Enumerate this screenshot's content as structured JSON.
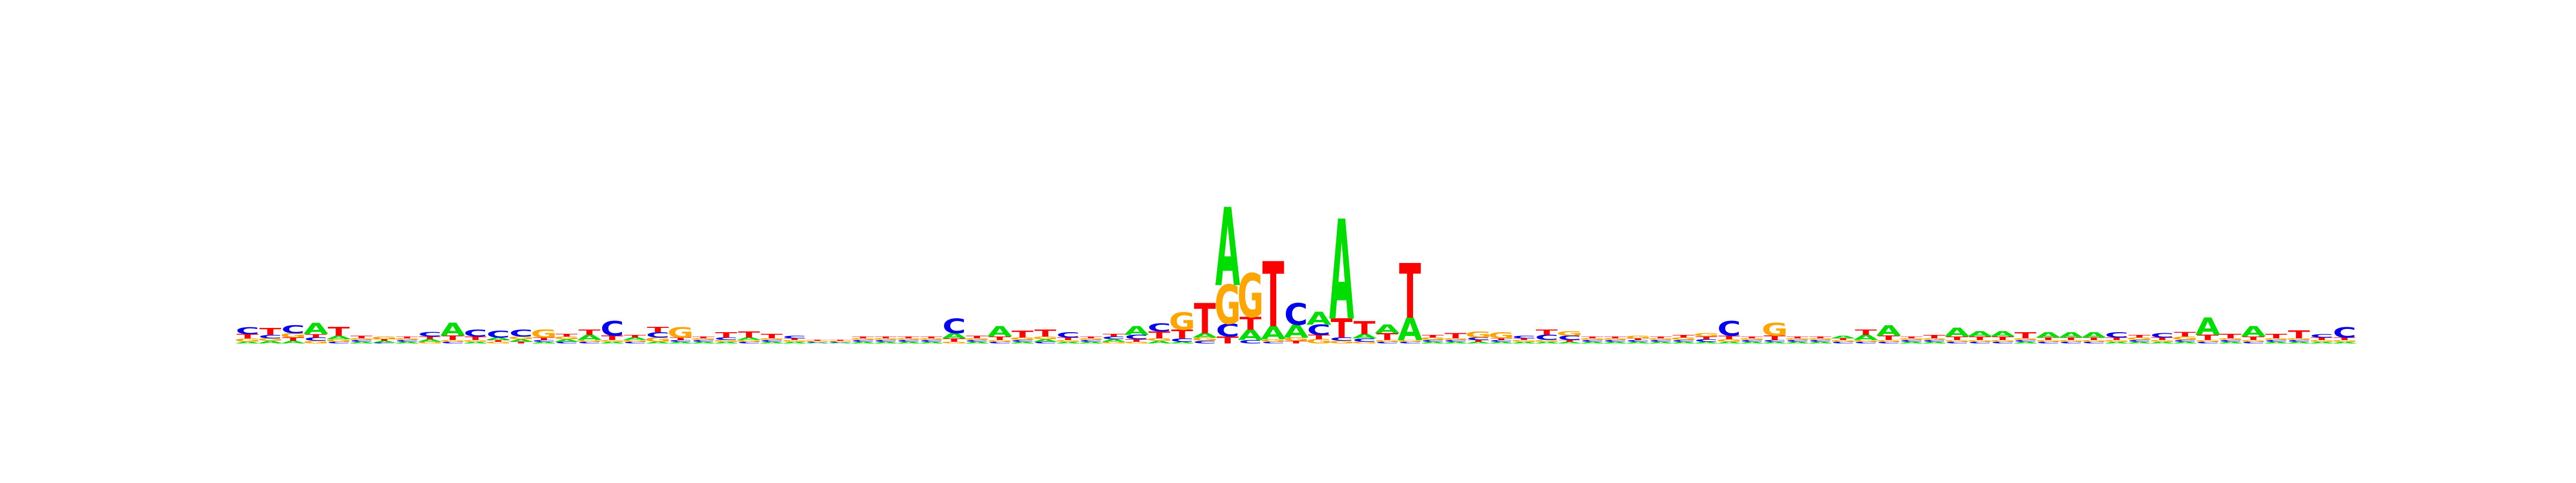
{
  "chart_data": {
    "type": "sequence-logo",
    "title": "",
    "xlabel": "",
    "ylabel": "",
    "ylim": [
      0,
      2
    ],
    "grid": false,
    "legend": "none",
    "alphabet": [
      "A",
      "C",
      "G",
      "T"
    ],
    "colors": {
      "A": "#00dd00",
      "C": "#0000ee",
      "G": "#ffa500",
      "T": "#ff0000"
    },
    "positions": [
      {
        "A": 0.02,
        "C": 0.08,
        "G": 0.04,
        "T": 0.05
      },
      {
        "A": 0.03,
        "C": 0.04,
        "G": 0.03,
        "T": 0.08
      },
      {
        "A": 0.03,
        "C": 0.09,
        "G": 0.05,
        "T": 0.04
      },
      {
        "A": 0.13,
        "C": 0.04,
        "G": 0.03,
        "T": 0.04
      },
      {
        "A": 0.04,
        "C": 0.02,
        "G": 0.03,
        "T": 0.1
      },
      {
        "A": 0.02,
        "C": 0.02,
        "G": 0.02,
        "T": 0.03
      },
      {
        "A": 0.02,
        "C": 0.01,
        "G": 0.03,
        "T": 0.02
      },
      {
        "A": 0.02,
        "C": 0.02,
        "G": 0.02,
        "T": 0.02
      },
      {
        "A": 0.03,
        "C": 0.05,
        "G": 0.02,
        "T": 0.03
      },
      {
        "A": 0.15,
        "C": 0.02,
        "G": 0.02,
        "T": 0.05
      },
      {
        "A": 0.02,
        "C": 0.08,
        "G": 0.02,
        "T": 0.04
      },
      {
        "A": 0.03,
        "C": 0.08,
        "G": 0.02,
        "T": 0.02
      },
      {
        "A": 0.03,
        "C": 0.08,
        "G": 0.03,
        "T": 0.02
      },
      {
        "A": 0.02,
        "C": 0.02,
        "G": 0.09,
        "T": 0.03
      },
      {
        "A": 0.03,
        "C": 0.02,
        "G": 0.03,
        "T": 0.03
      },
      {
        "A": 0.06,
        "C": 0.02,
        "G": 0.02,
        "T": 0.06
      },
      {
        "A": 0.02,
        "C": 0.17,
        "G": 0.02,
        "T": 0.05
      },
      {
        "A": 0.03,
        "C": 0.02,
        "G": 0.02,
        "T": 0.03
      },
      {
        "A": 0.02,
        "C": 0.06,
        "G": 0.05,
        "T": 0.06
      },
      {
        "A": 0.02,
        "C": 0.02,
        "G": 0.12,
        "T": 0.03
      },
      {
        "A": 0.02,
        "C": 0.02,
        "G": 0.02,
        "T": 0.02
      },
      {
        "A": 0.02,
        "C": 0.03,
        "G": 0.02,
        "T": 0.06
      },
      {
        "A": 0.03,
        "C": 0.02,
        "G": 0.02,
        "T": 0.07
      },
      {
        "A": 0.02,
        "C": 0.02,
        "G": 0.02,
        "T": 0.05
      },
      {
        "A": 0.02,
        "C": 0.03,
        "G": 0.02,
        "T": 0.02
      },
      {
        "A": 0.01,
        "C": 0.01,
        "G": 0.01,
        "T": 0.01
      },
      {
        "A": 0.01,
        "C": 0.01,
        "G": 0.01,
        "T": 0.01
      },
      {
        "A": 0.02,
        "C": 0.02,
        "G": 0.02,
        "T": 0.02
      },
      {
        "A": 0.02,
        "C": 0.02,
        "G": 0.02,
        "T": 0.02
      },
      {
        "A": 0.02,
        "C": 0.02,
        "G": 0.02,
        "T": 0.02
      },
      {
        "A": 0.02,
        "C": 0.02,
        "G": 0.02,
        "T": 0.02
      },
      {
        "A": 0.06,
        "C": 0.17,
        "G": 0.02,
        "T": 0.04
      },
      {
        "A": 0.02,
        "C": 0.02,
        "G": 0.02,
        "T": 0.03
      },
      {
        "A": 0.12,
        "C": 0.02,
        "G": 0.02,
        "T": 0.04
      },
      {
        "A": 0.02,
        "C": 0.02,
        "G": 0.03,
        "T": 0.08
      },
      {
        "A": 0.03,
        "C": 0.02,
        "G": 0.03,
        "T": 0.08
      },
      {
        "A": 0.02,
        "C": 0.06,
        "G": 0.02,
        "T": 0.03
      },
      {
        "A": 0.02,
        "C": 0.02,
        "G": 0.02,
        "T": 0.02
      },
      {
        "A": 0.03,
        "C": 0.03,
        "G": 0.02,
        "T": 0.03
      },
      {
        "A": 0.1,
        "C": 0.05,
        "G": 0.02,
        "T": 0.03
      },
      {
        "A": 0.03,
        "C": 0.09,
        "G": 0.03,
        "T": 0.08
      },
      {
        "A": 0.02,
        "C": 0.04,
        "G": 0.2,
        "T": 0.1
      },
      {
        "A": 0.05,
        "C": 0.03,
        "G": 0.04,
        "T": 0.35
      },
      {
        "A": 0.9,
        "C": 0.15,
        "G": 0.45,
        "T": 0.08
      },
      {
        "A": 0.12,
        "C": 0.04,
        "G": 0.5,
        "T": 0.15
      },
      {
        "A": 0.15,
        "C": 0.02,
        "G": 0.03,
        "T": 0.75
      },
      {
        "A": 0.15,
        "C": 0.25,
        "G": 0.04,
        "T": 0.03
      },
      {
        "A": 0.15,
        "C": 0.12,
        "G": 0.05,
        "T": 0.05
      },
      {
        "A": 1.15,
        "C": 0.04,
        "G": 0.03,
        "T": 0.22
      },
      {
        "A": 0.05,
        "C": 0.04,
        "G": 0.02,
        "T": 0.15
      },
      {
        "A": 0.1,
        "C": 0.02,
        "G": 0.02,
        "T": 0.08
      },
      {
        "A": 0.26,
        "C": 0.02,
        "G": 0.02,
        "T": 0.63
      },
      {
        "A": 0.02,
        "C": 0.02,
        "G": 0.03,
        "T": 0.03
      },
      {
        "A": 0.02,
        "C": 0.02,
        "G": 0.02,
        "T": 0.06
      },
      {
        "A": 0.02,
        "C": 0.03,
        "G": 0.07,
        "T": 0.02
      },
      {
        "A": 0.02,
        "C": 0.02,
        "G": 0.07,
        "T": 0.02
      },
      {
        "A": 0.02,
        "C": 0.03,
        "G": 0.02,
        "T": 0.02
      },
      {
        "A": 0.02,
        "C": 0.06,
        "G": 0.02,
        "T": 0.06
      },
      {
        "A": 0.02,
        "C": 0.05,
        "G": 0.05,
        "T": 0.02
      },
      {
        "A": 0.02,
        "C": 0.02,
        "G": 0.02,
        "T": 0.02
      },
      {
        "A": 0.02,
        "C": 0.02,
        "G": 0.02,
        "T": 0.02
      },
      {
        "A": 0.02,
        "C": 0.02,
        "G": 0.03,
        "T": 0.02
      },
      {
        "A": 0.02,
        "C": 0.02,
        "G": 0.02,
        "T": 0.02
      },
      {
        "A": 0.02,
        "C": 0.02,
        "G": 0.03,
        "T": 0.03
      },
      {
        "A": 0.02,
        "C": 0.03,
        "G": 0.04,
        "T": 0.03
      },
      {
        "A": 0.02,
        "C": 0.17,
        "G": 0.03,
        "T": 0.04
      },
      {
        "A": 0.02,
        "C": 0.02,
        "G": 0.02,
        "T": 0.02
      },
      {
        "A": 0.02,
        "C": 0.02,
        "G": 0.15,
        "T": 0.05
      },
      {
        "A": 0.02,
        "C": 0.02,
        "G": 0.02,
        "T": 0.02
      },
      {
        "A": 0.02,
        "C": 0.02,
        "G": 0.02,
        "T": 0.02
      },
      {
        "A": 0.03,
        "C": 0.02,
        "G": 0.02,
        "T": 0.02
      },
      {
        "A": 0.06,
        "C": 0.02,
        "G": 0.02,
        "T": 0.06
      },
      {
        "A": 0.12,
        "C": 0.02,
        "G": 0.02,
        "T": 0.05
      },
      {
        "A": 0.02,
        "C": 0.02,
        "G": 0.02,
        "T": 0.02
      },
      {
        "A": 0.02,
        "C": 0.02,
        "G": 0.02,
        "T": 0.04
      },
      {
        "A": 0.1,
        "C": 0.02,
        "G": 0.02,
        "T": 0.04
      },
      {
        "A": 0.06,
        "C": 0.02,
        "G": 0.02,
        "T": 0.04
      },
      {
        "A": 0.06,
        "C": 0.02,
        "G": 0.02,
        "T": 0.04
      },
      {
        "A": 0.02,
        "C": 0.02,
        "G": 0.02,
        "T": 0.07
      },
      {
        "A": 0.06,
        "C": 0.02,
        "G": 0.02,
        "T": 0.03
      },
      {
        "A": 0.06,
        "C": 0.02,
        "G": 0.02,
        "T": 0.03
      },
      {
        "A": 0.06,
        "C": 0.02,
        "G": 0.02,
        "T": 0.03
      },
      {
        "A": 0.02,
        "C": 0.06,
        "G": 0.02,
        "T": 0.03
      },
      {
        "A": 0.02,
        "C": 0.02,
        "G": 0.03,
        "T": 0.03
      },
      {
        "A": 0.02,
        "C": 0.05,
        "G": 0.02,
        "T": 0.03
      },
      {
        "A": 0.02,
        "C": 0.02,
        "G": 0.04,
        "T": 0.05
      },
      {
        "A": 0.2,
        "C": 0.02,
        "G": 0.02,
        "T": 0.06
      },
      {
        "A": 0.02,
        "C": 0.02,
        "G": 0.02,
        "T": 0.05
      },
      {
        "A": 0.12,
        "C": 0.02,
        "G": 0.02,
        "T": 0.04
      },
      {
        "A": 0.02,
        "C": 0.02,
        "G": 0.02,
        "T": 0.05
      },
      {
        "A": 0.02,
        "C": 0.02,
        "G": 0.02,
        "T": 0.09
      },
      {
        "A": 0.02,
        "C": 0.04,
        "G": 0.02,
        "T": 0.03
      },
      {
        "A": 0.02,
        "C": 0.12,
        "G": 0.02,
        "T": 0.03
      }
    ]
  }
}
